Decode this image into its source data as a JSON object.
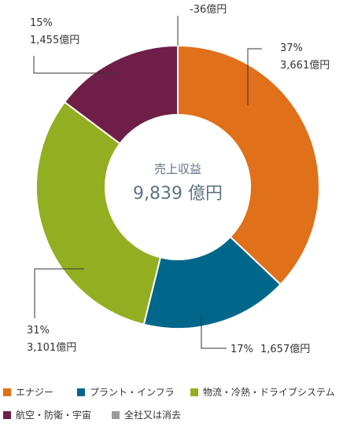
{
  "chart_data": {
    "type": "pie",
    "center_title": "売上収益",
    "center_value": "9,839 億円",
    "slices": [
      {
        "name": "エナジー",
        "value": 3661,
        "pct_label": "37%",
        "amount_label": "3,661億円",
        "color": "#e07019"
      },
      {
        "name": "プラント・インフラ",
        "value": 1657,
        "pct_label": "17%",
        "amount_label": "1,657億円",
        "color": "#00678a"
      },
      {
        "name": "物流・冷熱・ドライブシステム",
        "value": 3101,
        "pct_label": "31%",
        "amount_label": "3,101億円",
        "color": "#94ae22"
      },
      {
        "name": "航空・防衛・宇宙",
        "value": 1455,
        "pct_label": "15%",
        "amount_label": "1,455億円",
        "color": "#6f1e48"
      },
      {
        "name": "全社又は消去",
        "value": -36,
        "pct_label": "",
        "amount_label": "-36億円",
        "color": "#9a9a9a"
      }
    ]
  }
}
